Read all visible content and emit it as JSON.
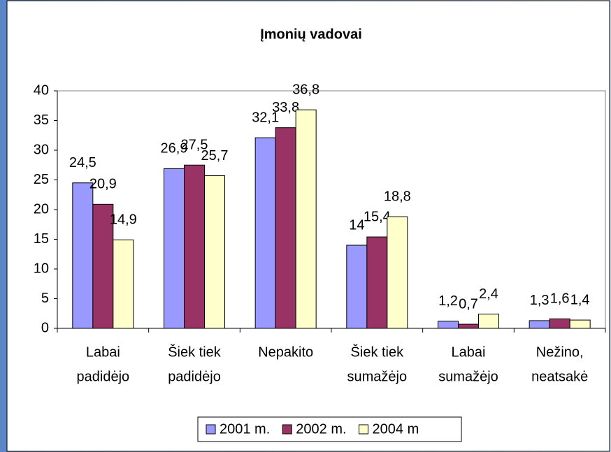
{
  "chart_data": {
    "type": "bar",
    "title": "Įmonių vadovai",
    "categories": [
      [
        "Labai",
        "padidėjo"
      ],
      [
        "Šiek tiek",
        "padidėjo"
      ],
      [
        "Nepakito"
      ],
      [
        "Šiek tiek",
        "sumažėjo"
      ],
      [
        "Labai",
        "sumažėjo"
      ],
      [
        "Nežino,",
        "neatsakė"
      ]
    ],
    "series": [
      {
        "name": "2001 m.",
        "color": "#9999ff",
        "values": [
          24.5,
          26.9,
          32.1,
          14,
          1.2,
          1.3
        ],
        "value_labels": [
          "24,5",
          "26,9",
          "32,1",
          "14",
          "1,2",
          "1,3"
        ]
      },
      {
        "name": "2002 m.",
        "color": "#993366",
        "values": [
          20.9,
          27.5,
          33.8,
          15.4,
          0.7,
          1.6
        ],
        "value_labels": [
          "20,9",
          "27,5",
          "33,8",
          "15,4",
          "0,7",
          "1,6"
        ]
      },
      {
        "name": "2004 m",
        "color": "#ffffcc",
        "values": [
          14.9,
          25.7,
          36.8,
          18.8,
          2.4,
          1.4
        ],
        "value_labels": [
          "14,9",
          "25,7",
          "36,8",
          "18,8",
          "2,4",
          "1,4"
        ]
      }
    ],
    "ylim": [
      0,
      40
    ],
    "yticks": [
      0,
      5,
      10,
      15,
      20,
      25,
      30,
      35,
      40
    ],
    "legend": "bottom"
  }
}
